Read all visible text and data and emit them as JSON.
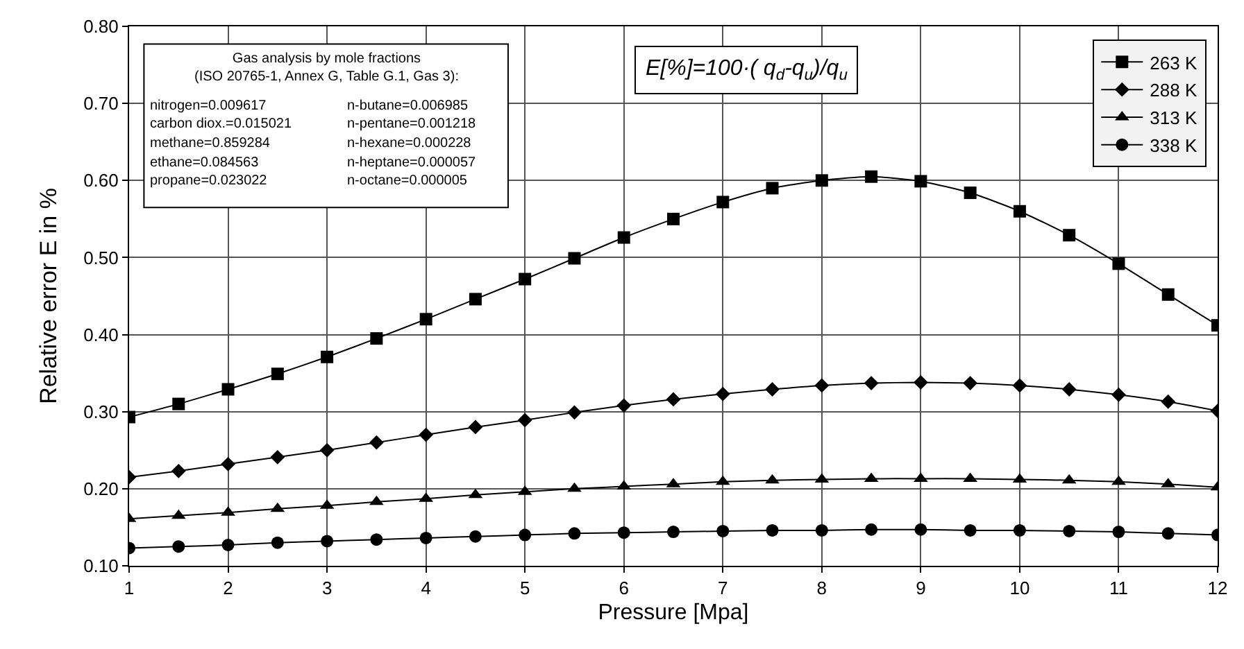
{
  "chart_data": {
    "type": "line",
    "xlabel": "Pressure [Mpa]",
    "ylabel": "Relative error E in %",
    "x": [
      1,
      1.5,
      2,
      2.5,
      3,
      3.5,
      4,
      4.5,
      5,
      5.5,
      6,
      6.5,
      7,
      7.5,
      8,
      8.5,
      9,
      9.5,
      10,
      10.5,
      11,
      11.5,
      12
    ],
    "xlim": [
      1,
      12
    ],
    "xticks": [
      1,
      2,
      3,
      4,
      5,
      6,
      7,
      8,
      9,
      10,
      11,
      12
    ],
    "ylim": [
      0.1,
      0.8
    ],
    "yticks": [
      {
        "value": 0.1,
        "label": "0.10"
      },
      {
        "value": 0.2,
        "label": "0.20"
      },
      {
        "value": 0.3,
        "label": "0.30"
      },
      {
        "value": 0.4,
        "label": "0.40"
      },
      {
        "value": 0.5,
        "label": "0.50"
      },
      {
        "value": 0.6,
        "label": "0.60"
      },
      {
        "value": 0.7,
        "label": "0.70"
      },
      {
        "value": 0.8,
        "label": "0.80"
      }
    ],
    "grid": true,
    "legend": "top right",
    "line_style": "solid",
    "series": [
      {
        "name": "263 K",
        "color": "#000000",
        "marker": "square",
        "values": [
          0.293,
          0.31,
          0.329,
          0.349,
          0.371,
          0.395,
          0.42,
          0.446,
          0.472,
          0.499,
          0.526,
          0.55,
          0.572,
          0.59,
          0.6,
          0.605,
          0.599,
          0.584,
          0.56,
          0.529,
          0.492,
          0.452,
          0.412
        ]
      },
      {
        "name": "288 K",
        "color": "#000000",
        "marker": "diamond",
        "values": [
          0.215,
          0.223,
          0.232,
          0.241,
          0.25,
          0.26,
          0.27,
          0.28,
          0.289,
          0.299,
          0.308,
          0.316,
          0.323,
          0.329,
          0.334,
          0.337,
          0.338,
          0.337,
          0.334,
          0.329,
          0.322,
          0.313,
          0.301
        ]
      },
      {
        "name": "313 K",
        "color": "#000000",
        "marker": "triangle",
        "values": [
          0.161,
          0.165,
          0.169,
          0.174,
          0.178,
          0.183,
          0.187,
          0.192,
          0.196,
          0.2,
          0.203,
          0.206,
          0.209,
          0.211,
          0.212,
          0.213,
          0.213,
          0.213,
          0.212,
          0.211,
          0.209,
          0.206,
          0.202
        ]
      },
      {
        "name": "338 K",
        "color": "#000000",
        "marker": "circle",
        "values": [
          0.123,
          0.125,
          0.127,
          0.13,
          0.132,
          0.134,
          0.136,
          0.138,
          0.14,
          0.142,
          0.143,
          0.144,
          0.145,
          0.146,
          0.146,
          0.147,
          0.147,
          0.146,
          0.146,
          0.145,
          0.144,
          0.142,
          0.14
        ]
      }
    ],
    "annotations": [
      "Gas analysis by mole fractions\n(ISO 20765-1, Annex G, Table G.1, Gas 3):",
      "nitrogen=0.009617",
      "carbon diox.=0.015021",
      "methane=0.859284",
      "ethane=0.084563",
      "propane=0.023022",
      "n-butane=0.006985",
      "n-pentane=0.001218",
      "n-hexane=0.000228",
      "n-heptane=0.000057",
      "n-octane=0.000005",
      "E[%]=100·( q$_{d}$-q$_{u}$)/q$_{u}$"
    ]
  }
}
